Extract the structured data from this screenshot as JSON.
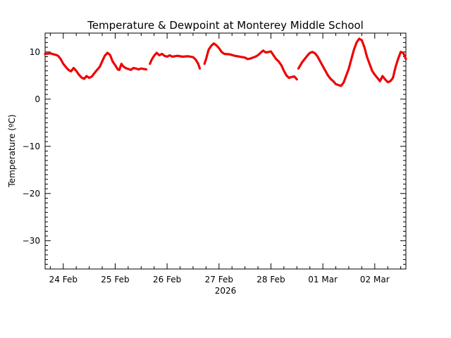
{
  "chart_data": {
    "type": "line",
    "title": "Temperature & Dewpoint at Monterey Middle School",
    "ylabel": "Temperature (ºC)",
    "xlabel": "2026",
    "ylim": [
      -36,
      14
    ],
    "xlim": [
      -0.35,
      6.6
    ],
    "yticks": [
      -30,
      -20,
      -10,
      0,
      10
    ],
    "xticks": [
      {
        "pos": 0,
        "label": "24 Feb"
      },
      {
        "pos": 1,
        "label": "25 Feb"
      },
      {
        "pos": 2,
        "label": "26 Feb"
      },
      {
        "pos": 3,
        "label": "27 Feb"
      },
      {
        "pos": 4,
        "label": "28 Feb"
      },
      {
        "pos": 5,
        "label": "01 Mar"
      },
      {
        "pos": 6,
        "label": "02 Mar"
      }
    ],
    "series": [
      {
        "color": "#ee0000",
        "segments": [
          [
            [
              -0.35,
              9.6
            ],
            [
              -0.25,
              9.7
            ],
            [
              -0.15,
              9.4
            ],
            [
              -0.1,
              9.2
            ],
            [
              -0.05,
              8.5
            ],
            [
              0,
              7.5
            ],
            [
              0.05,
              6.8
            ],
            [
              0.1,
              6.2
            ],
            [
              0.15,
              5.9
            ],
            [
              0.2,
              6.6
            ],
            [
              0.25,
              6.0
            ],
            [
              0.3,
              5.2
            ],
            [
              0.35,
              4.6
            ],
            [
              0.4,
              4.3
            ],
            [
              0.45,
              4.9
            ],
            [
              0.5,
              4.5
            ],
            [
              0.55,
              4.8
            ],
            [
              0.6,
              5.5
            ],
            [
              0.65,
              6.2
            ],
            [
              0.7,
              6.8
            ],
            [
              0.75,
              8.0
            ],
            [
              0.8,
              9.2
            ],
            [
              0.85,
              9.8
            ],
            [
              0.9,
              9.4
            ],
            [
              0.95,
              8.0
            ],
            [
              1.0,
              7.2
            ],
            [
              1.05,
              6.3
            ],
            [
              1.08,
              6.2
            ],
            [
              1.12,
              7.5
            ],
            [
              1.15,
              7.0
            ],
            [
              1.2,
              6.6
            ],
            [
              1.25,
              6.4
            ],
            [
              1.3,
              6.2
            ],
            [
              1.35,
              6.6
            ],
            [
              1.4,
              6.5
            ],
            [
              1.45,
              6.3
            ],
            [
              1.5,
              6.5
            ],
            [
              1.55,
              6.4
            ],
            [
              1.6,
              6.3
            ]
          ],
          [
            [
              1.67,
              7.5
            ],
            [
              1.7,
              8.3
            ],
            [
              1.75,
              9.2
            ],
            [
              1.8,
              9.8
            ],
            [
              1.85,
              9.3
            ],
            [
              1.9,
              9.6
            ],
            [
              1.95,
              9.2
            ],
            [
              2.0,
              9.0
            ],
            [
              2.05,
              9.3
            ],
            [
              2.1,
              9.0
            ],
            [
              2.2,
              9.2
            ],
            [
              2.3,
              9.0
            ],
            [
              2.4,
              9.1
            ],
            [
              2.5,
              8.9
            ],
            [
              2.55,
              8.4
            ],
            [
              2.6,
              7.5
            ],
            [
              2.63,
              6.5
            ]
          ],
          [
            [
              2.72,
              7.5
            ],
            [
              2.75,
              8.5
            ],
            [
              2.8,
              10.5
            ],
            [
              2.85,
              11.3
            ],
            [
              2.9,
              11.8
            ],
            [
              2.95,
              11.4
            ],
            [
              3.0,
              10.8
            ],
            [
              3.05,
              10.0
            ],
            [
              3.1,
              9.6
            ],
            [
              3.2,
              9.5
            ],
            [
              3.3,
              9.2
            ],
            [
              3.4,
              9.0
            ],
            [
              3.5,
              8.8
            ],
            [
              3.55,
              8.5
            ],
            [
              3.6,
              8.6
            ],
            [
              3.7,
              9.0
            ],
            [
              3.75,
              9.3
            ],
            [
              3.8,
              9.8
            ],
            [
              3.85,
              10.3
            ],
            [
              3.9,
              9.9
            ],
            [
              4.0,
              10.1
            ],
            [
              4.05,
              9.3
            ],
            [
              4.1,
              8.5
            ],
            [
              4.15,
              8.0
            ],
            [
              4.2,
              7.2
            ],
            [
              4.25,
              6.0
            ],
            [
              4.3,
              5.0
            ],
            [
              4.35,
              4.5
            ],
            [
              4.4,
              4.7
            ],
            [
              4.45,
              4.8
            ],
            [
              4.5,
              4.2
            ]
          ],
          [
            [
              4.53,
              6.5
            ],
            [
              4.6,
              7.8
            ],
            [
              4.65,
              8.5
            ],
            [
              4.7,
              9.2
            ],
            [
              4.75,
              9.8
            ],
            [
              4.8,
              10.0
            ],
            [
              4.85,
              9.7
            ],
            [
              4.9,
              9.0
            ],
            [
              4.95,
              8.0
            ],
            [
              5.0,
              7.0
            ],
            [
              5.05,
              6.0
            ],
            [
              5.1,
              5.0
            ],
            [
              5.15,
              4.3
            ],
            [
              5.2,
              3.8
            ],
            [
              5.25,
              3.2
            ],
            [
              5.3,
              3.0
            ],
            [
              5.35,
              2.8
            ],
            [
              5.4,
              3.5
            ],
            [
              5.45,
              5.0
            ],
            [
              5.5,
              6.5
            ],
            [
              5.55,
              8.5
            ],
            [
              5.6,
              10.5
            ],
            [
              5.65,
              12.0
            ],
            [
              5.7,
              12.8
            ],
            [
              5.75,
              12.5
            ],
            [
              5.8,
              11.0
            ],
            [
              5.85,
              9.0
            ],
            [
              5.9,
              7.5
            ],
            [
              5.95,
              6.0
            ],
            [
              6.0,
              5.2
            ],
            [
              6.05,
              4.5
            ],
            [
              6.1,
              3.8
            ],
            [
              6.15,
              4.9
            ],
            [
              6.2,
              4.2
            ],
            [
              6.25,
              3.6
            ],
            [
              6.3,
              3.8
            ],
            [
              6.35,
              4.5
            ],
            [
              6.4,
              6.8
            ],
            [
              6.45,
              8.5
            ],
            [
              6.5,
              10.0
            ],
            [
              6.55,
              9.8
            ],
            [
              6.6,
              8.5
            ]
          ]
        ]
      }
    ]
  }
}
